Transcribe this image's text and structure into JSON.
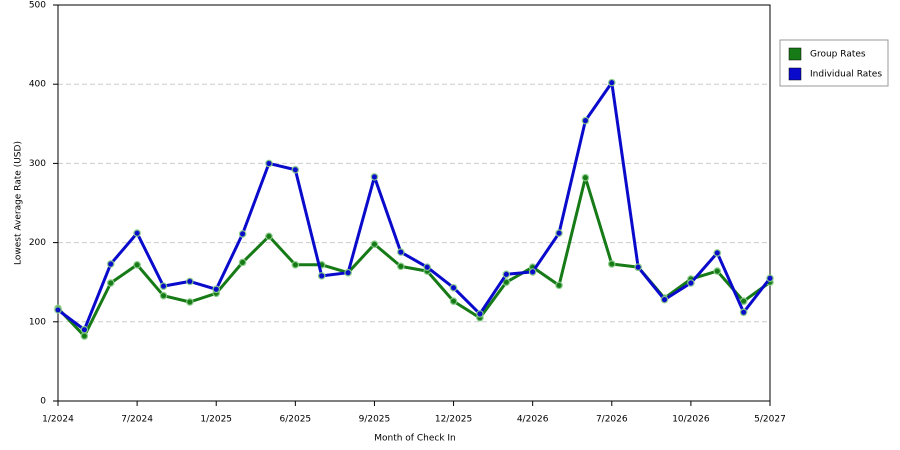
{
  "chart_data": {
    "type": "line",
    "x_label": "Month of Check In",
    "y_label": "Lowest Average Rate (USD)",
    "categories": [
      "1/2024",
      null,
      null,
      "7/2024",
      null,
      null,
      "1/2025",
      null,
      null,
      "6/2025",
      null,
      null,
      "9/2025",
      null,
      null,
      "12/2025",
      null,
      null,
      "4/2026",
      null,
      null,
      "7/2026",
      null,
      null,
      "10/2026",
      null,
      null,
      "5/2027"
    ],
    "series": [
      {
        "name": "Group Rates",
        "color": "#167a16",
        "values": [
          117,
          82,
          149,
          172,
          133,
          125,
          136,
          175,
          208,
          172,
          172,
          162,
          198,
          170,
          164,
          126,
          105,
          150,
          169,
          146,
          282,
          173,
          169,
          130,
          154,
          164,
          126,
          150
        ]
      },
      {
        "name": "Individual Rates",
        "color": "#0a0acc",
        "values": [
          115,
          90,
          173,
          212,
          145,
          151,
          141,
          211,
          300,
          292,
          158,
          162,
          283,
          188,
          169,
          143,
          110,
          160,
          163,
          212,
          354,
          402,
          169,
          128,
          149,
          187,
          112,
          155
        ]
      }
    ],
    "ylim": [
      0,
      500
    ],
    "yticks": [
      0,
      100,
      200,
      300,
      400,
      500
    ],
    "grid": true,
    "legend": "right"
  }
}
